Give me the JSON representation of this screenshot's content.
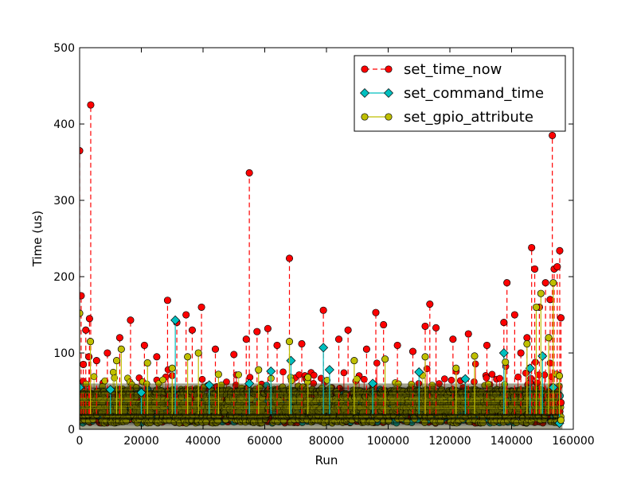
{
  "chart_data": {
    "type": "line",
    "title": "",
    "xlabel": "Run",
    "ylabel": "Time (us)",
    "xlim": [
      0,
      160000
    ],
    "ylim": [
      0,
      500
    ],
    "x_ticks": [
      0,
      20000,
      40000,
      60000,
      80000,
      100000,
      120000,
      140000,
      160000
    ],
    "y_ticks": [
      0,
      100,
      200,
      300,
      400,
      500
    ],
    "grid": false,
    "legend_position": "top-right",
    "series": [
      {
        "name": "set_time_now",
        "color": "#ff0000",
        "marker": "circle",
        "line_style": "dashed",
        "points": [
          [
            0,
            365
          ],
          [
            500,
            175
          ],
          [
            1200,
            85
          ],
          [
            2000,
            130
          ],
          [
            3000,
            95
          ],
          [
            3200,
            145
          ],
          [
            3600,
            425
          ],
          [
            5500,
            90
          ],
          [
            9000,
            100
          ],
          [
            13000,
            120
          ],
          [
            16500,
            143
          ],
          [
            21000,
            110
          ],
          [
            25000,
            95
          ],
          [
            28500,
            169
          ],
          [
            31500,
            140
          ],
          [
            34500,
            150
          ],
          [
            36500,
            130
          ],
          [
            39500,
            160
          ],
          [
            44000,
            105
          ],
          [
            50000,
            98
          ],
          [
            54000,
            118
          ],
          [
            55000,
            336
          ],
          [
            57500,
            128
          ],
          [
            61000,
            132
          ],
          [
            64000,
            110
          ],
          [
            68000,
            224
          ],
          [
            72000,
            112
          ],
          [
            79000,
            156
          ],
          [
            84000,
            118
          ],
          [
            87000,
            130
          ],
          [
            93000,
            105
          ],
          [
            96000,
            153
          ],
          [
            98500,
            137
          ],
          [
            103000,
            110
          ],
          [
            108000,
            102
          ],
          [
            112000,
            135
          ],
          [
            113500,
            164
          ],
          [
            115500,
            133
          ],
          [
            121000,
            118
          ],
          [
            126000,
            125
          ],
          [
            132000,
            110
          ],
          [
            137500,
            140
          ],
          [
            138500,
            192
          ],
          [
            141000,
            150
          ],
          [
            143000,
            100
          ],
          [
            145000,
            120
          ],
          [
            146500,
            238
          ],
          [
            147500,
            210
          ],
          [
            149000,
            160
          ],
          [
            151000,
            192
          ],
          [
            152500,
            170
          ],
          [
            153200,
            385
          ],
          [
            153800,
            210
          ],
          [
            154800,
            213
          ],
          [
            155600,
            234
          ],
          [
            156000,
            146
          ],
          [
            156000,
            35
          ]
        ]
      },
      {
        "name": "set_command_time",
        "color": "#00bfbf",
        "marker": "diamond",
        "line_style": "solid",
        "points": [
          [
            0,
            55
          ],
          [
            10000,
            52
          ],
          [
            20000,
            48
          ],
          [
            31000,
            143
          ],
          [
            42000,
            58
          ],
          [
            55000,
            60
          ],
          [
            62000,
            76
          ],
          [
            68500,
            90
          ],
          [
            79000,
            107
          ],
          [
            81000,
            78
          ],
          [
            95000,
            60
          ],
          [
            110000,
            75
          ],
          [
            125000,
            66
          ],
          [
            137500,
            100
          ],
          [
            146000,
            80
          ],
          [
            150000,
            96
          ],
          [
            153500,
            55
          ],
          [
            155500,
            8
          ]
        ]
      },
      {
        "name": "set_gpio_attribute",
        "color": "#bfbf00",
        "marker": "circle",
        "line_style": "solid",
        "points": [
          [
            0,
            152
          ],
          [
            3500,
            115
          ],
          [
            12000,
            90
          ],
          [
            13500,
            105
          ],
          [
            22000,
            87
          ],
          [
            30000,
            80
          ],
          [
            35000,
            95
          ],
          [
            38500,
            100
          ],
          [
            45000,
            72
          ],
          [
            58000,
            78
          ],
          [
            68000,
            115
          ],
          [
            74000,
            68
          ],
          [
            89000,
            90
          ],
          [
            99000,
            92
          ],
          [
            112000,
            95
          ],
          [
            122000,
            80
          ],
          [
            128000,
            96
          ],
          [
            138000,
            88
          ],
          [
            145000,
            112
          ],
          [
            148000,
            160
          ],
          [
            149500,
            178
          ],
          [
            152000,
            120
          ],
          [
            153500,
            192
          ],
          [
            155500,
            70
          ],
          [
            156000,
            12
          ]
        ]
      }
    ]
  }
}
